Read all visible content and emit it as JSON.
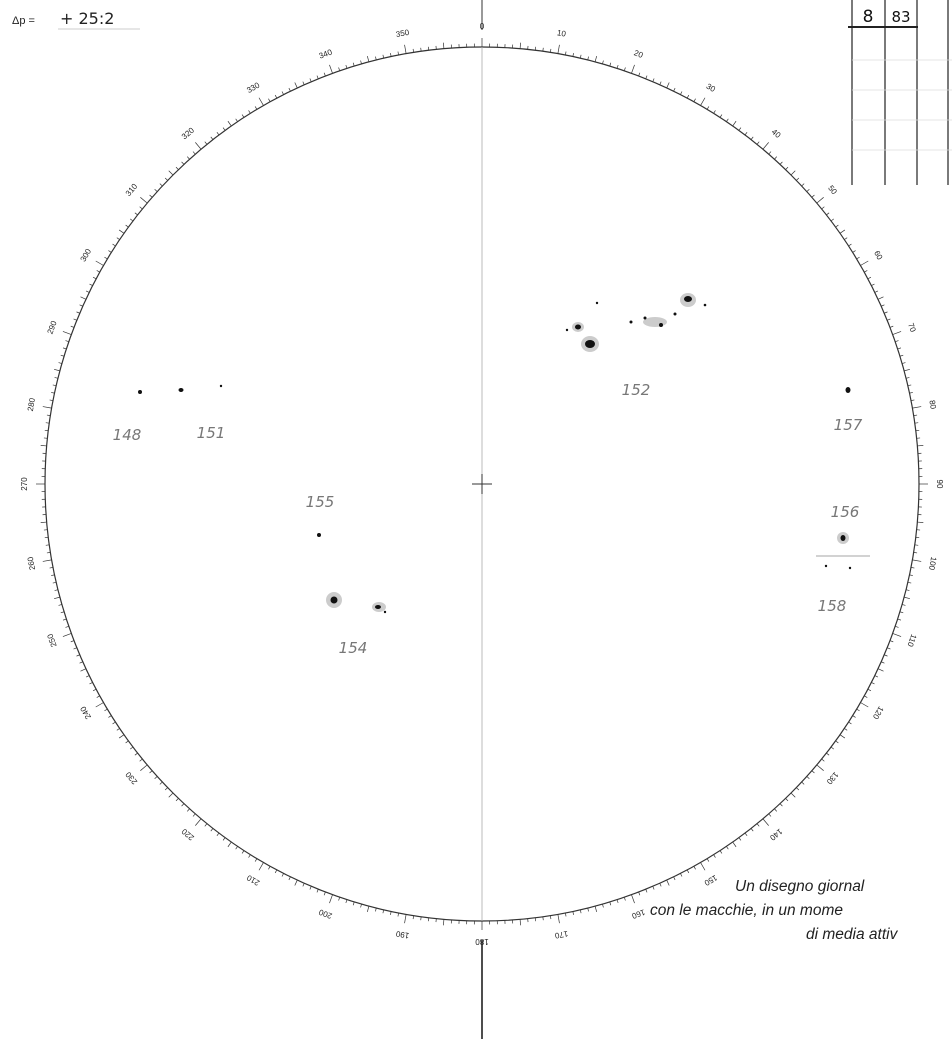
{
  "header": {
    "delta_label": "Δp =",
    "delta_value": "+ 25:2"
  },
  "table": {
    "cells": [
      "8",
      "83"
    ]
  },
  "disk": {
    "degree_labels": [
      "0",
      "10",
      "20",
      "30",
      "40",
      "50",
      "60",
      "70",
      "80",
      "90",
      "100",
      "110",
      "120",
      "130",
      "140",
      "150",
      "160",
      "170",
      "180",
      "190",
      "200",
      "210",
      "220",
      "230",
      "240",
      "250",
      "260",
      "270",
      "280",
      "290",
      "300",
      "310",
      "320",
      "330",
      "340",
      "350"
    ],
    "groups": [
      "148",
      "151",
      "155",
      "154",
      "152",
      "157",
      "156",
      "158"
    ]
  },
  "caption": {
    "lines": [
      "Un disegno giornal",
      "con le macchie, in un mome",
      "di media attiv"
    ]
  }
}
